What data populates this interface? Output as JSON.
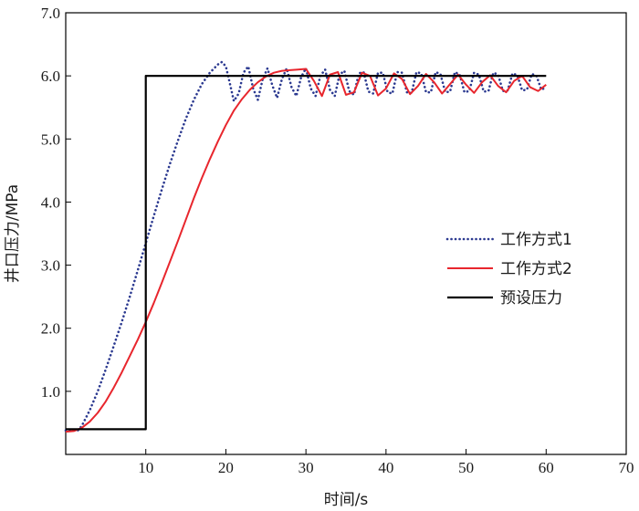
{
  "chart_data": {
    "type": "line",
    "xlabel": "时间/s",
    "ylabel": "井口压力/MPa",
    "xlim": [
      0,
      70
    ],
    "ylim": [
      0,
      7.0
    ],
    "xticks": [
      10,
      20,
      30,
      40,
      50,
      60,
      70
    ],
    "xtick_labels": [
      "10",
      "20",
      "30",
      "40",
      "50",
      "60",
      "70"
    ],
    "yticks": [
      1.0,
      2.0,
      3.0,
      4.0,
      5.0,
      6.0,
      7.0
    ],
    "ytick_labels": [
      "1.0",
      "2.0",
      "3.0",
      "4.0",
      "5.0",
      "6.0",
      "7.0"
    ],
    "grid": false,
    "legend_position": "right",
    "series": [
      {
        "name": "工作方式1",
        "color": "#2b3990",
        "style": "dotted",
        "x": [
          0.0,
          1.5,
          2.0,
          3.0,
          4.0,
          5.0,
          6.0,
          7.0,
          8.0,
          9.0,
          10.0,
          11.0,
          12.0,
          13.0,
          14.0,
          15.0,
          16.0,
          17.0,
          18.0,
          19.0,
          19.5,
          20.0,
          20.5,
          21.0,
          21.6,
          22.2,
          22.8,
          23.4,
          24.0,
          24.6,
          25.2,
          25.8,
          26.4,
          27.0,
          27.6,
          28.2,
          28.8,
          29.4,
          30.0,
          30.6,
          31.2,
          31.8,
          32.4,
          33.0,
          33.6,
          34.2,
          34.8,
          35.4,
          36.0,
          36.6,
          37.2,
          37.8,
          38.4,
          39.0,
          39.6,
          40.2,
          40.8,
          41.4,
          42.0,
          42.6,
          43.2,
          43.8,
          44.4,
          45.0,
          45.6,
          46.2,
          46.8,
          47.4,
          48.0,
          48.6,
          49.2,
          49.8,
          50.4,
          51.0,
          51.6,
          52.2,
          52.8,
          53.4,
          54.0,
          54.6,
          55.2,
          55.8,
          56.4,
          57.0,
          57.6,
          58.2,
          58.8,
          59.4,
          60.0
        ],
        "y": [
          0.38,
          0.38,
          0.45,
          0.7,
          1.0,
          1.35,
          1.72,
          2.1,
          2.5,
          2.92,
          3.35,
          3.78,
          4.2,
          4.6,
          4.97,
          5.32,
          5.62,
          5.87,
          6.05,
          6.18,
          6.22,
          6.15,
          5.88,
          5.6,
          5.72,
          6.05,
          6.15,
          5.8,
          5.62,
          5.95,
          6.12,
          5.85,
          5.65,
          5.95,
          6.12,
          5.82,
          5.68,
          5.98,
          6.12,
          5.8,
          5.68,
          6.0,
          6.1,
          5.78,
          5.68,
          6.02,
          6.08,
          5.76,
          5.7,
          6.04,
          6.06,
          5.75,
          5.72,
          6.05,
          6.05,
          5.74,
          5.72,
          6.06,
          6.05,
          5.74,
          5.73,
          6.06,
          6.04,
          5.74,
          5.74,
          6.06,
          6.03,
          5.74,
          5.75,
          6.06,
          6.02,
          5.74,
          5.76,
          6.05,
          6.02,
          5.75,
          5.76,
          6.05,
          6.02,
          5.76,
          5.77,
          6.04,
          6.01,
          5.77,
          5.78,
          6.03,
          6.0,
          5.78,
          5.82
        ]
      },
      {
        "name": "工作方式2",
        "color": "#e8262d",
        "style": "solid",
        "x": [
          0.0,
          1.0,
          2.0,
          3.0,
          4.0,
          5.0,
          6.0,
          7.0,
          8.0,
          9.0,
          10.0,
          11.0,
          12.0,
          13.0,
          14.0,
          15.0,
          16.0,
          17.0,
          18.0,
          19.0,
          20.0,
          21.0,
          22.0,
          23.0,
          24.0,
          25.0,
          26.0,
          27.0,
          28.0,
          29.0,
          30.0,
          31.0,
          32.0,
          33.0,
          34.0,
          35.0,
          36.0,
          37.0,
          38.0,
          39.0,
          40.0,
          41.0,
          42.0,
          43.0,
          44.0,
          45.0,
          46.0,
          47.0,
          48.0,
          49.0,
          50.0,
          51.0,
          52.0,
          53.0,
          54.0,
          55.0,
          56.0,
          57.0,
          58.0,
          59.0,
          60.0
        ],
        "y": [
          0.36,
          0.37,
          0.42,
          0.52,
          0.66,
          0.84,
          1.06,
          1.3,
          1.56,
          1.82,
          2.1,
          2.4,
          2.72,
          3.05,
          3.38,
          3.72,
          4.06,
          4.38,
          4.68,
          4.96,
          5.22,
          5.45,
          5.63,
          5.78,
          5.9,
          5.99,
          6.05,
          6.08,
          6.09,
          6.1,
          6.11,
          5.92,
          5.68,
          6.02,
          6.06,
          5.7,
          5.74,
          6.05,
          6.0,
          5.69,
          5.8,
          6.04,
          5.95,
          5.71,
          5.84,
          6.03,
          5.9,
          5.72,
          5.87,
          6.02,
          5.86,
          5.73,
          5.9,
          6.01,
          5.84,
          5.74,
          5.92,
          6.0,
          5.82,
          5.76,
          5.86
        ]
      },
      {
        "name": "预设压力",
        "color": "#000000",
        "style": "solid",
        "x": [
          0.0,
          10.0,
          10.0,
          60.0
        ],
        "y": [
          0.4,
          0.4,
          6.0,
          6.0
        ]
      }
    ]
  }
}
